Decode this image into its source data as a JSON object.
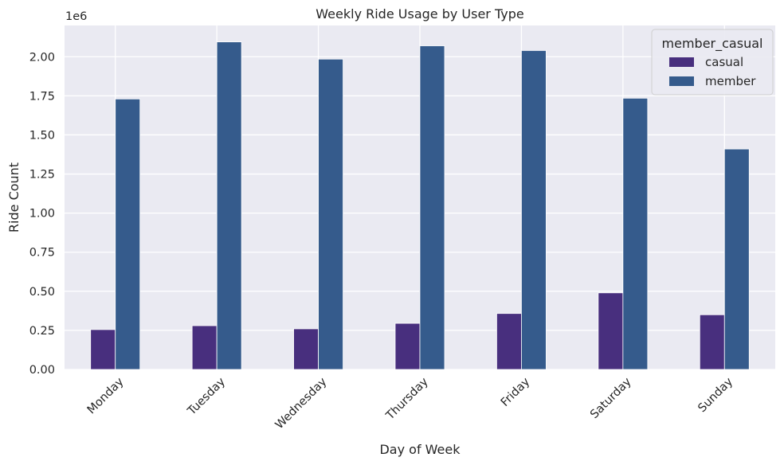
{
  "chart_data": {
    "type": "bar",
    "title": "Weekly Ride Usage by User Type",
    "xlabel": "Day of Week",
    "ylabel": "Ride Count",
    "offset_text": "1e6",
    "categories": [
      "Monday",
      "Tuesday",
      "Wednesday",
      "Thursday",
      "Friday",
      "Saturday",
      "Sunday"
    ],
    "series": [
      {
        "name": "casual",
        "color": "#482f7e",
        "values": [
          255000,
          280000,
          260000,
          295000,
          358000,
          490000,
          350000
        ]
      },
      {
        "name": "member",
        "color": "#355b8c",
        "values": [
          1730000,
          2095000,
          1985000,
          2070000,
          2040000,
          1735000,
          1410000
        ]
      }
    ],
    "ylim": [
      0,
      2200000
    ],
    "yticks": [
      0,
      250000,
      500000,
      750000,
      1000000,
      1250000,
      1500000,
      1750000,
      2000000
    ],
    "ytick_labels": [
      "0.00",
      "0.25",
      "0.50",
      "0.75",
      "1.00",
      "1.25",
      "1.50",
      "1.75",
      "2.00"
    ],
    "grid": true,
    "background": "#eaeaf2",
    "legend": {
      "title": "member_casual",
      "placement": "top-right"
    }
  }
}
